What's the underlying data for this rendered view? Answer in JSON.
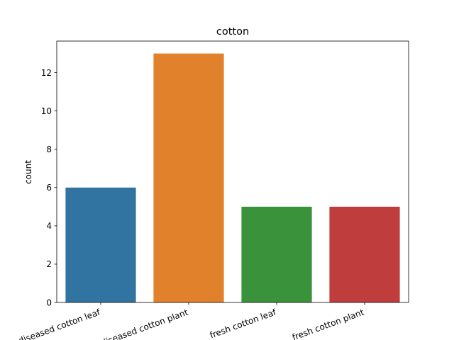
{
  "chart_data": {
    "type": "bar",
    "title": "cotton",
    "xlabel": "",
    "ylabel": "count",
    "categories": [
      "diseased cotton leaf",
      "diseased cotton plant",
      "fresh cotton leaf",
      "fresh cotton plant"
    ],
    "values": [
      6,
      13,
      5,
      5
    ],
    "colors": [
      "#3274a1",
      "#e1812c",
      "#3a923a",
      "#c03d3e"
    ],
    "ylim": [
      0,
      13.65
    ],
    "yticks": [
      0,
      2,
      4,
      6,
      8,
      10,
      12
    ],
    "grid": false,
    "legend": "none"
  }
}
